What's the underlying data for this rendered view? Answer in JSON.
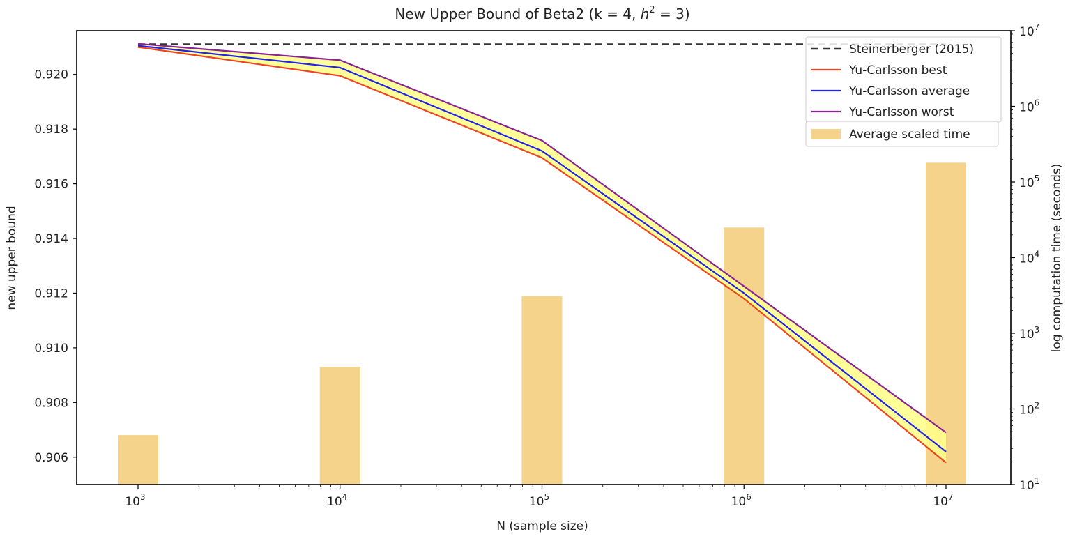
{
  "chart_data": {
    "type": "line",
    "title": "New Upper Bound of Beta2 (k = 4, h² = 3)",
    "title_parts": {
      "prefix": "New Upper Bound of Beta2 (k = 4, ",
      "italic": "h",
      "superscript": "2",
      "suffix": " = 3)"
    },
    "xlabel": "N (sample size)",
    "ylabel": "new upper bound",
    "y2label": "log computation time (seconds)",
    "x_scale": "log",
    "x": [
      1000,
      10000,
      100000,
      1000000,
      10000000
    ],
    "x_ticks": [
      {
        "value": 1000,
        "base": "10",
        "exp": "3"
      },
      {
        "value": 10000,
        "base": "10",
        "exp": "4"
      },
      {
        "value": 100000,
        "base": "10",
        "exp": "5"
      },
      {
        "value": 1000000,
        "base": "10",
        "exp": "6"
      },
      {
        "value": 10000000,
        "base": "10",
        "exp": "7"
      }
    ],
    "ylim": [
      0.905,
      0.9216
    ],
    "y_ticks": [
      "0.906",
      "0.908",
      "0.910",
      "0.912",
      "0.914",
      "0.916",
      "0.918",
      "0.920"
    ],
    "y2_scale": "log",
    "y2lim": [
      10,
      10000000
    ],
    "y2_ticks": [
      {
        "value": 10,
        "base": "10",
        "exp": "1"
      },
      {
        "value": 100,
        "base": "10",
        "exp": "2"
      },
      {
        "value": 1000,
        "base": "10",
        "exp": "3"
      },
      {
        "value": 10000,
        "base": "10",
        "exp": "4"
      },
      {
        "value": 100000,
        "base": "10",
        "exp": "5"
      },
      {
        "value": 1000000,
        "base": "10",
        "exp": "6"
      },
      {
        "value": 10000000,
        "base": "10",
        "exp": "7"
      }
    ],
    "series": [
      {
        "name": "Steinerberger (2015)",
        "kind": "dashed",
        "color": "#333333",
        "values": [
          0.9211,
          0.9211,
          0.9211,
          0.9211,
          0.9211
        ]
      },
      {
        "name": "Yu-Carlsson best",
        "kind": "line",
        "color": "#ee4422",
        "values": [
          0.921,
          0.91995,
          0.91695,
          0.9118,
          0.9058
        ]
      },
      {
        "name": "Yu-Carlsson average",
        "kind": "line",
        "color": "#2222ee",
        "values": [
          0.92105,
          0.92025,
          0.9172,
          0.912,
          0.9062
        ]
      },
      {
        "name": "Yu-Carlsson worst",
        "kind": "line",
        "color": "#882299",
        "values": [
          0.92112,
          0.92052,
          0.91758,
          0.91225,
          0.9069
        ]
      }
    ],
    "fill_between": {
      "lower": "Yu-Carlsson best",
      "upper": "Yu-Carlsson worst",
      "color": "#ffff88"
    },
    "bars": {
      "name": "Average scaled time",
      "axis": "right",
      "color": "#f5d38a",
      "values": [
        45,
        360,
        3100,
        25000,
        180000
      ]
    },
    "legend_position": "upper right",
    "grid": false
  }
}
